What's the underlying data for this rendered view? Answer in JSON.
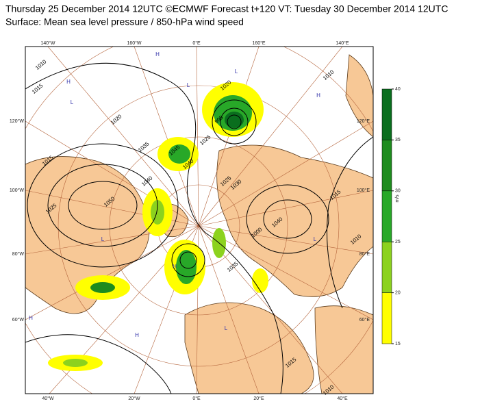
{
  "header": {
    "title": "Thursday 25 December 2014 12UTC ©ECMWF Forecast t+120 VT: Tuesday 30 December 2014 12UTC",
    "subtitle": "Surface: Mean sea level pressure / 850-hPa wind speed"
  },
  "map": {
    "top_labels": [
      "140°W",
      "160°W",
      "0°E",
      "160°E",
      "140°E"
    ],
    "bottom_labels": [
      "40°W",
      "20°W",
      "0°E",
      "20°E",
      "40°E"
    ],
    "left_labels": [
      "120°W",
      "100°W",
      "80°W",
      "60°W"
    ],
    "right_labels": [
      "120°E",
      "100°E",
      "80°E",
      "60°E"
    ],
    "isobar_labels": [
      "1010",
      "1015",
      "1020",
      "1010",
      "1025",
      "1035",
      "1040",
      "1045",
      "1050",
      "1025",
      "1040",
      "1000",
      "1040",
      "1015",
      "1010",
      "1035",
      "1025",
      "995",
      "1015",
      "1015",
      "1010",
      "1020",
      "1030"
    ],
    "centers": [
      "H",
      "L",
      "H",
      "L",
      "L",
      "H",
      "H",
      "L",
      "H",
      "L",
      "H",
      "L"
    ]
  },
  "colorbar": {
    "ticks": [
      15,
      20,
      25,
      30,
      35,
      40
    ],
    "colors": [
      "#ffff00",
      "#8cd21e",
      "#28a828",
      "#1e8c1e",
      "#0a6e1e"
    ],
    "unit": "m/s"
  }
}
